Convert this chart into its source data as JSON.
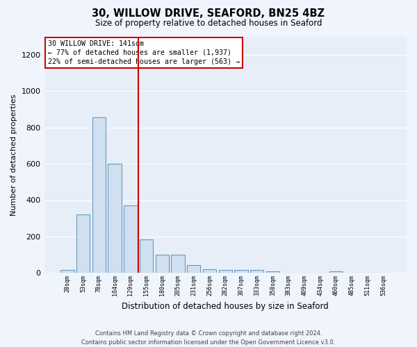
{
  "title": "30, WILLOW DRIVE, SEAFORD, BN25 4BZ",
  "subtitle": "Size of property relative to detached houses in Seaford",
  "xlabel": "Distribution of detached houses by size in Seaford",
  "ylabel": "Number of detached properties",
  "bar_labels": [
    "28sqm",
    "53sqm",
    "78sqm",
    "104sqm",
    "129sqm",
    "155sqm",
    "180sqm",
    "205sqm",
    "231sqm",
    "256sqm",
    "282sqm",
    "307sqm",
    "333sqm",
    "358sqm",
    "383sqm",
    "409sqm",
    "434sqm",
    "460sqm",
    "485sqm",
    "511sqm",
    "536sqm"
  ],
  "bar_heights": [
    15,
    320,
    855,
    600,
    370,
    185,
    100,
    100,
    45,
    20,
    15,
    15,
    15,
    10,
    0,
    0,
    0,
    10,
    0,
    0,
    0
  ],
  "bar_color": "#d0e0f0",
  "bar_edge_color": "#6699bb",
  "plot_bg_color": "#e8eef8",
  "fig_bg_color": "#f0f4fc",
  "grid_color": "#ffffff",
  "vline_x": 4.5,
  "vline_color": "#cc0000",
  "annotation_title": "30 WILLOW DRIVE: 141sqm",
  "annotation_line1": "← 77% of detached houses are smaller (1,937)",
  "annotation_line2": "22% of semi-detached houses are larger (563) →",
  "annotation_box_color": "#ffffff",
  "annotation_box_edge": "#cc0000",
  "footnote1": "Contains HM Land Registry data © Crown copyright and database right 2024.",
  "footnote2": "Contains public sector information licensed under the Open Government Licence v3.0.",
  "ylim": [
    0,
    1300
  ],
  "yticks": [
    0,
    200,
    400,
    600,
    800,
    1000,
    1200
  ]
}
